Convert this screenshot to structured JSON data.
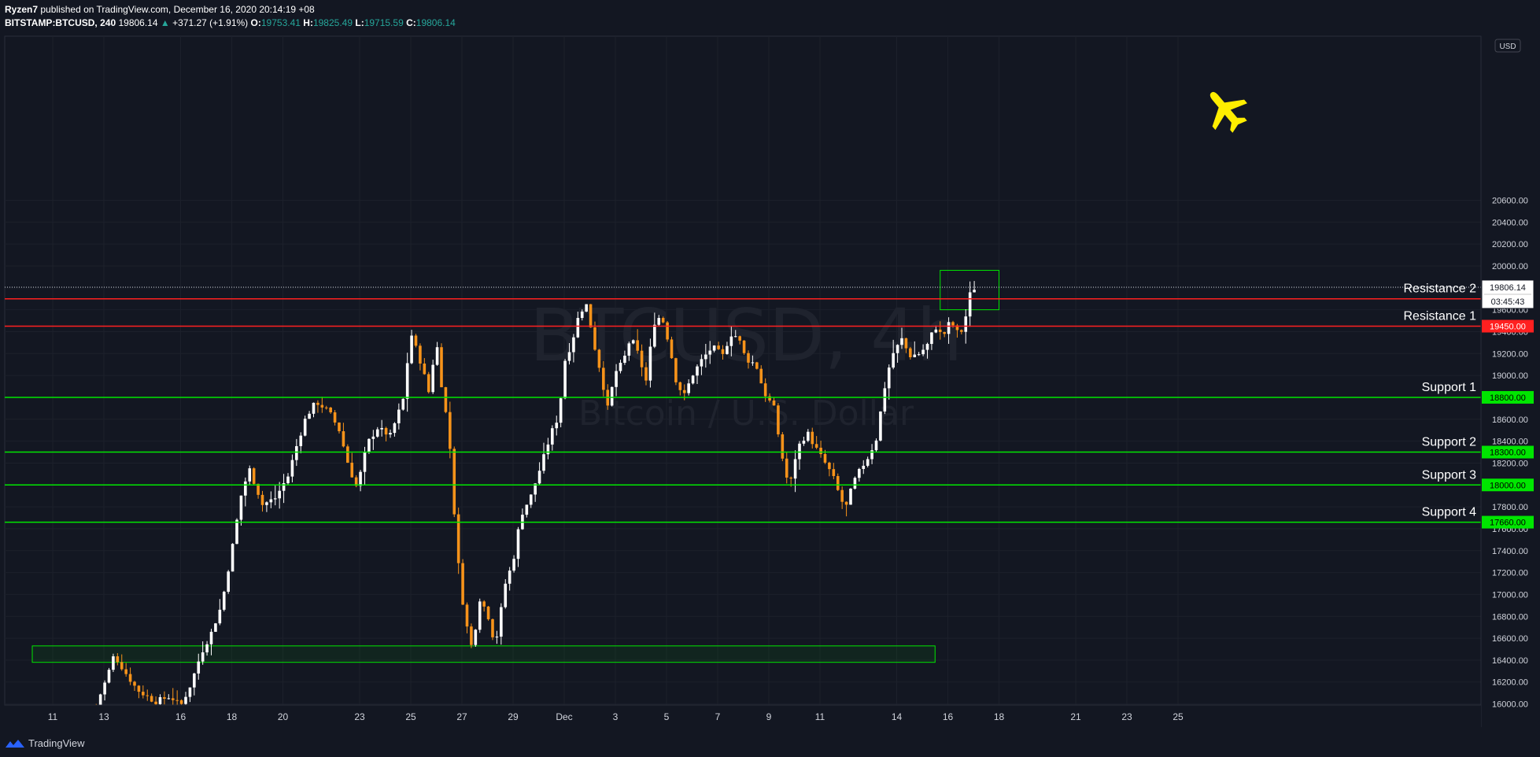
{
  "header": {
    "publisher": "Ryzen7",
    "published_text": "published on TradingView.com, December 16, 2020 20:14:19 +08",
    "symbol": "BITSTAMP:BTCUSD, 240",
    "last": "19806.14",
    "change_arrow": "▲",
    "change": "+371.27 (+1.91%)",
    "o_label": "O:",
    "o_value": "19753.41",
    "h_label": "H:",
    "h_value": "19825.49",
    "l_label": "L:",
    "l_value": "19715.59",
    "c_label": "C:",
    "c_value": "19806.14"
  },
  "footer": {
    "brand": "TradingView"
  },
  "watermark": {
    "title": "BTCUSD, 4h",
    "subtitle": "Bitcoin / U.S. Dollar"
  },
  "colors": {
    "background": "#131722",
    "up": "#ffffff",
    "down": "#f7931a",
    "support": "#00e600",
    "resistance": "#ff2020",
    "plane": "#ffee00"
  },
  "icons": {
    "plane": "airplane-icon",
    "logo": "tradingview-logo-icon"
  },
  "chart_data": {
    "type": "candlestick",
    "symbol": "BITSTAMP:BTCUSD",
    "interval": "240",
    "currency": "USD",
    "y_ticks": [
      16000,
      16200,
      16400,
      16600,
      16800,
      17000,
      17200,
      17400,
      17600,
      17800,
      18000,
      18200,
      18400,
      18600,
      18800,
      19000,
      19200,
      19400,
      19600,
      19800,
      20000,
      20200,
      20400,
      20600
    ],
    "x_ticks": [
      {
        "label": "11",
        "day": 11
      },
      {
        "label": "13",
        "day": 13
      },
      {
        "label": "16",
        "day": 16
      },
      {
        "label": "18",
        "day": 18
      },
      {
        "label": "20",
        "day": 20
      },
      {
        "label": "23",
        "day": 23
      },
      {
        "label": "25",
        "day": 25
      },
      {
        "label": "27",
        "day": 27
      },
      {
        "label": "29",
        "day": 29
      },
      {
        "label": "Dec",
        "day": 31
      },
      {
        "label": "3",
        "day": 33
      },
      {
        "label": "5",
        "day": 35
      },
      {
        "label": "7",
        "day": 37
      },
      {
        "label": "9",
        "day": 39
      },
      {
        "label": "11",
        "day": 41
      },
      {
        "label": "14",
        "day": 44
      },
      {
        "label": "16",
        "day": 46
      },
      {
        "label": "18",
        "day": 48
      },
      {
        "label": "21",
        "day": 51
      },
      {
        "label": "23",
        "day": 53
      },
      {
        "label": "25",
        "day": 55
      }
    ],
    "last_price": "19806.14",
    "countdown": "03:45:43",
    "levels": [
      {
        "name": "Resistance 2",
        "price": 19700,
        "kind": "resistance",
        "badge": ""
      },
      {
        "name": "Resistance 1",
        "price": 19450,
        "kind": "resistance",
        "badge": "19450.00"
      },
      {
        "name": "Support 1",
        "price": 18800,
        "kind": "support",
        "badge": "18800.00"
      },
      {
        "name": "Support 2",
        "price": 18300,
        "kind": "support",
        "badge": "18300.00"
      },
      {
        "name": "Support 3",
        "price": 18000,
        "kind": "support",
        "badge": "18000.00"
      },
      {
        "name": "Support 4",
        "price": 17660,
        "kind": "support",
        "badge": "17660.00"
      }
    ],
    "demand_zone": {
      "price_top": 16530,
      "price_bottom": 16380,
      "day_start": 10.2,
      "day_end": 45.5
    },
    "breakout_box": {
      "price_top": 19960,
      "price_bottom": 19600,
      "day_start": 45.7,
      "day_end": 48.0
    },
    "anchors": [
      [
        12.7,
        15990
      ],
      [
        13.1,
        16230
      ],
      [
        13.4,
        16450
      ],
      [
        13.8,
        16300
      ],
      [
        14.3,
        16130
      ],
      [
        15.0,
        16020
      ],
      [
        15.6,
        16070
      ],
      [
        16.0,
        15980
      ],
      [
        16.4,
        16180
      ],
      [
        16.8,
        16460
      ],
      [
        17.2,
        16650
      ],
      [
        17.6,
        16900
      ],
      [
        18.0,
        17400
      ],
      [
        18.4,
        17950
      ],
      [
        18.7,
        18140
      ],
      [
        19.2,
        17820
      ],
      [
        19.7,
        17880
      ],
      [
        20.2,
        18080
      ],
      [
        20.5,
        18330
      ],
      [
        20.9,
        18620
      ],
      [
        21.3,
        18760
      ],
      [
        21.8,
        18670
      ],
      [
        22.2,
        18500
      ],
      [
        22.6,
        18150
      ],
      [
        22.9,
        17970
      ],
      [
        23.3,
        18380
      ],
      [
        23.7,
        18520
      ],
      [
        24.2,
        18450
      ],
      [
        24.7,
        18780
      ],
      [
        25.0,
        19390
      ],
      [
        25.4,
        19110
      ],
      [
        25.7,
        18850
      ],
      [
        26.0,
        19320
      ],
      [
        26.2,
        18920
      ],
      [
        26.5,
        18450
      ],
      [
        26.8,
        17400
      ],
      [
        27.1,
        16800
      ],
      [
        27.4,
        16500
      ],
      [
        27.7,
        16960
      ],
      [
        28.0,
        16830
      ],
      [
        28.3,
        16530
      ],
      [
        28.7,
        17100
      ],
      [
        29.0,
        17300
      ],
      [
        29.3,
        17720
      ],
      [
        29.7,
        17900
      ],
      [
        30.1,
        18180
      ],
      [
        30.5,
        18480
      ],
      [
        30.8,
        18640
      ],
      [
        31.0,
        19120
      ],
      [
        31.3,
        19300
      ],
      [
        31.6,
        19580
      ],
      [
        31.9,
        19650
      ],
      [
        32.1,
        19350
      ],
      [
        32.4,
        19050
      ],
      [
        32.7,
        18700
      ],
      [
        33.0,
        19030
      ],
      [
        33.3,
        19120
      ],
      [
        33.6,
        19350
      ],
      [
        33.9,
        19190
      ],
      [
        34.2,
        18950
      ],
      [
        34.5,
        19480
      ],
      [
        34.8,
        19550
      ],
      [
        35.1,
        19290
      ],
      [
        35.4,
        18920
      ],
      [
        35.7,
        18820
      ],
      [
        36.0,
        19000
      ],
      [
        36.4,
        19150
      ],
      [
        36.8,
        19260
      ],
      [
        37.2,
        19180
      ],
      [
        37.5,
        19380
      ],
      [
        37.8,
        19350
      ],
      [
        38.1,
        19150
      ],
      [
        38.5,
        19100
      ],
      [
        38.8,
        18850
      ],
      [
        39.2,
        18700
      ],
      [
        39.5,
        18280
      ],
      [
        39.8,
        17960
      ],
      [
        40.1,
        18330
      ],
      [
        40.5,
        18480
      ],
      [
        40.8,
        18350
      ],
      [
        41.2,
        18200
      ],
      [
        41.5,
        18080
      ],
      [
        41.8,
        17880
      ],
      [
        42.0,
        17780
      ],
      [
        42.3,
        18020
      ],
      [
        42.6,
        18150
      ],
      [
        42.9,
        18260
      ],
      [
        43.2,
        18420
      ],
      [
        43.5,
        18860
      ],
      [
        43.8,
        19180
      ],
      [
        44.2,
        19330
      ],
      [
        44.5,
        19180
      ],
      [
        44.9,
        19200
      ],
      [
        45.2,
        19280
      ],
      [
        45.5,
        19450
      ],
      [
        45.8,
        19350
      ],
      [
        46.1,
        19500
      ],
      [
        46.4,
        19380
      ],
      [
        46.6,
        19420
      ],
      [
        46.9,
        19780
      ],
      [
        47.1,
        19806
      ]
    ]
  }
}
